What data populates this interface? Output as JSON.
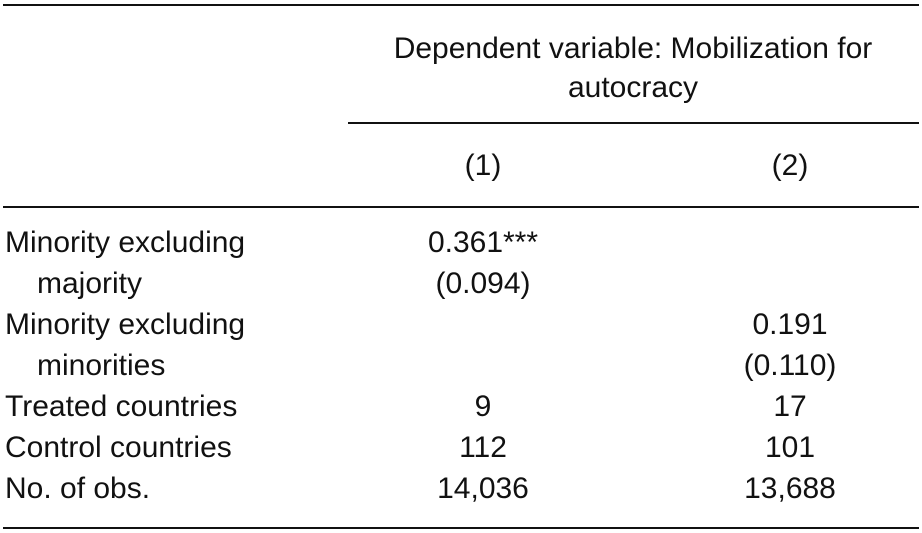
{
  "table": {
    "header": "Dependent variable: Mobilization for autocracy",
    "columns": [
      "(1)",
      "(2)"
    ],
    "rows": [
      {
        "label": "Minority excluding majority",
        "cells": [
          {
            "estimate": "0.361***",
            "se": "(0.094)"
          },
          null
        ]
      },
      {
        "label": "Minority excluding minorities",
        "cells": [
          null,
          {
            "estimate": "0.191",
            "se": "(0.110)"
          }
        ]
      },
      {
        "label": "Treated countries",
        "cells": [
          "9",
          "17"
        ]
      },
      {
        "label": "Control countries",
        "cells": [
          "112",
          "101"
        ]
      },
      {
        "label": "No. of obs.",
        "cells": [
          "14,036",
          "13,688"
        ]
      }
    ]
  }
}
